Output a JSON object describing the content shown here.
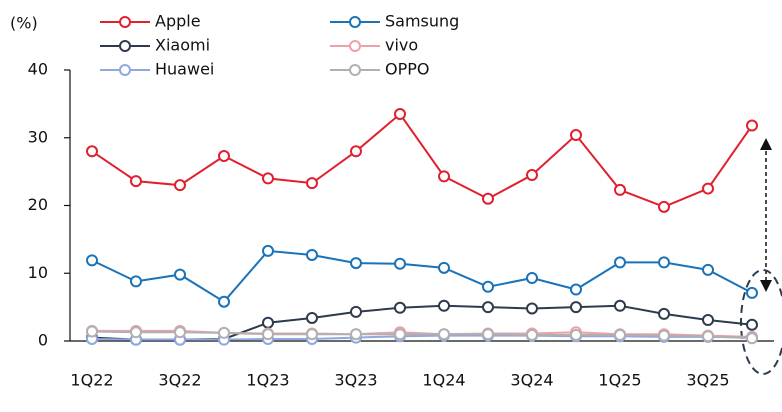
{
  "chart_data": {
    "type": "line",
    "y_label": "(%)",
    "categories": [
      "1Q22",
      null,
      "3Q22",
      null,
      "1Q23",
      null,
      "3Q23",
      null,
      "1Q24",
      null,
      "3Q24",
      null,
      "1Q25",
      null,
      "3Q25",
      null
    ],
    "series": [
      {
        "name": "Apple",
        "color": "#e0202e",
        "values": [
          28,
          23.6,
          23,
          27.3,
          24,
          23.3,
          28,
          33.5,
          24.3,
          21,
          24.5,
          30.4,
          22.3,
          19.8,
          22.5,
          31.8
        ]
      },
      {
        "name": "Samsung",
        "color": "#1a73b8",
        "values": [
          11.9,
          8.8,
          9.8,
          5.8,
          13.3,
          12.7,
          11.5,
          11.4,
          10.8,
          8.0,
          9.3,
          7.6,
          11.6,
          11.6,
          10.5,
          7.1
        ]
      },
      {
        "name": "Xiaomi",
        "color": "#2e3a4e",
        "values": [
          0.5,
          0.2,
          0.2,
          0.3,
          2.7,
          3.4,
          4.3,
          4.9,
          5.2,
          5.0,
          4.8,
          5.0,
          5.2,
          4.0,
          3.1,
          2.4
        ]
      },
      {
        "name": "vivo",
        "color": "#f0a0a8",
        "values": [
          1.5,
          1.5,
          1.5,
          1.2,
          1.1,
          1.1,
          1.0,
          1.3,
          1.0,
          1.1,
          1.1,
          1.3,
          1.0,
          1.0,
          0.8,
          0.6
        ]
      },
      {
        "name": "Huawei",
        "color": "#8fa8e0",
        "values": [
          0.3,
          0.2,
          0.2,
          0.2,
          0.3,
          0.3,
          0.5,
          0.7,
          0.8,
          0.8,
          0.8,
          0.7,
          0.7,
          0.6,
          0.6,
          0.5
        ]
      },
      {
        "name": "OPPO",
        "color": "#b0b0b0",
        "values": [
          1.4,
          1.3,
          1.3,
          1.2,
          1.0,
          1.0,
          1.0,
          1.0,
          1.0,
          1.0,
          0.9,
          0.9,
          0.9,
          0.8,
          0.7,
          0.4
        ]
      }
    ],
    "ylim": [
      0,
      40
    ],
    "yticks": [
      0,
      10,
      20,
      30,
      40
    ],
    "grid": false
  }
}
